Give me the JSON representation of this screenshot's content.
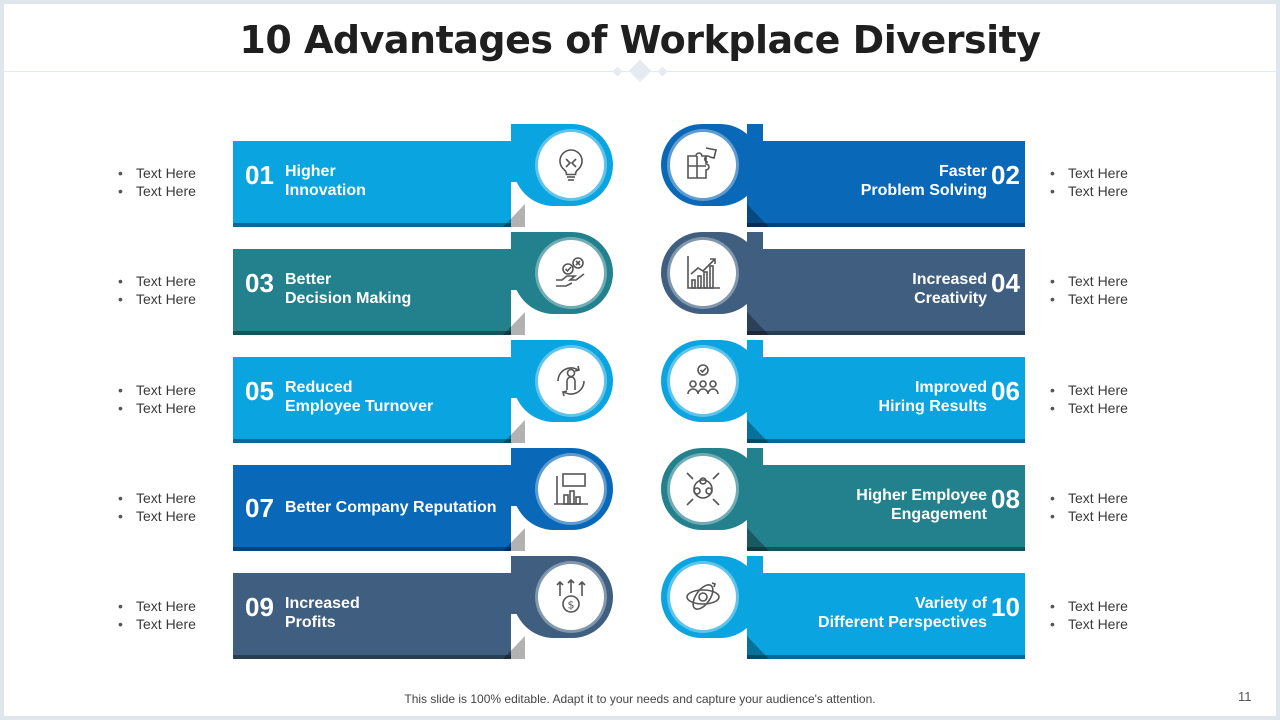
{
  "title": "10 Advantages of Workplace Diversity",
  "footer": "This slide is 100% editable. Adapt it to your needs and capture your audience's attention.",
  "page_number": "11",
  "colors": {
    "cyan": "#0aa4e0",
    "blue": "#0a68b8",
    "teal": "#23808d",
    "slate": "#3f5e80"
  },
  "items": [
    {
      "num": "01",
      "lines": [
        "Higher",
        "Innovation"
      ],
      "icon": "lightbulb-icon",
      "bullets": [
        "Text Here",
        "Text Here"
      ]
    },
    {
      "num": "02",
      "lines": [
        "Faster",
        "Problem Solving"
      ],
      "icon": "puzzle-icon",
      "bullets": [
        "Text Here",
        "Text Here"
      ]
    },
    {
      "num": "03",
      "lines": [
        "Better",
        "Decision Making"
      ],
      "icon": "decision-handshake-icon",
      "bullets": [
        "Text Here",
        "Text Here"
      ]
    },
    {
      "num": "04",
      "lines": [
        "Increased",
        "Creativity"
      ],
      "icon": "growth-chart-icon",
      "bullets": [
        "Text Here",
        "Text Here"
      ]
    },
    {
      "num": "05",
      "lines": [
        "Reduced",
        "Employee Turnover"
      ],
      "icon": "employee-cycle-icon",
      "bullets": [
        "Text Here",
        "Text Here"
      ]
    },
    {
      "num": "06",
      "lines": [
        "Improved",
        "Hiring Results"
      ],
      "icon": "hiring-team-icon",
      "bullets": [
        "Text Here",
        "Text Here"
      ]
    },
    {
      "num": "07",
      "lines": [
        "Better Company Reputation",
        ""
      ],
      "icon": "presentation-board-icon",
      "bullets": [
        "Text Here",
        "Text Here"
      ]
    },
    {
      "num": "08",
      "lines": [
        "Higher Employee",
        "Engagement"
      ],
      "icon": "engagement-group-icon",
      "bullets": [
        "Text Here",
        "Text Here"
      ]
    },
    {
      "num": "09",
      "lines": [
        "Increased",
        "Profits"
      ],
      "icon": "profit-dollar-icon",
      "bullets": [
        "Text Here",
        "Text Here"
      ]
    },
    {
      "num": "10",
      "lines": [
        "Variety of",
        "Different Perspectives"
      ],
      "icon": "perspective-orbit-icon",
      "bullets": [
        "Text Here",
        "Text Here"
      ]
    }
  ]
}
